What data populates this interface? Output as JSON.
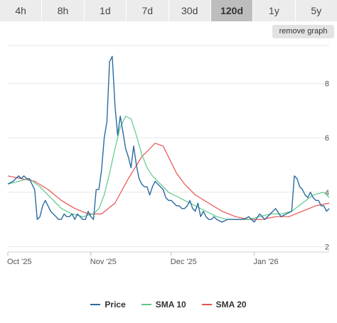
{
  "toolbar": {
    "tabs": [
      {
        "label": "4h"
      },
      {
        "label": "8h"
      },
      {
        "label": "1d"
      },
      {
        "label": "7d"
      },
      {
        "label": "30d"
      },
      {
        "label": "120d"
      },
      {
        "label": "1y"
      },
      {
        "label": "5y"
      }
    ],
    "active_tab": "120d",
    "remove_graph_label": "remove graph"
  },
  "chart_data": {
    "type": "line",
    "x_tick_labels": [
      "Oct '25",
      "Nov '25",
      "Dec '25",
      "Jan '26"
    ],
    "x_ticks": [
      0,
      31,
      61,
      92
    ],
    "y_tick_labels": [
      "2",
      "4",
      "6",
      "8"
    ],
    "ylim": [
      1.8,
      9.4
    ],
    "xlim": [
      0,
      120
    ],
    "grid": true,
    "legend_position": "bottom",
    "series": [
      {
        "name": "Price",
        "color": "#2b6ba0",
        "x": [
          0,
          2,
          4,
          5,
          6,
          7,
          8,
          9,
          10,
          11,
          12,
          13,
          14,
          15,
          16,
          18,
          19,
          20,
          21,
          22,
          23,
          24,
          25,
          26,
          27,
          28,
          29,
          30,
          31,
          32,
          33,
          34,
          35,
          36,
          37,
          38,
          39,
          40,
          41,
          42,
          43,
          44,
          45,
          46,
          47,
          48,
          49,
          50,
          51,
          52,
          53,
          54,
          55,
          56,
          57,
          58,
          59,
          60,
          61,
          62,
          63,
          64,
          65,
          66,
          67,
          68,
          69,
          70,
          71,
          72,
          73,
          74,
          75,
          76,
          77,
          78,
          80,
          82,
          84,
          86,
          88,
          90,
          92,
          94,
          96,
          98,
          100,
          102,
          104,
          106,
          107,
          108,
          109,
          110,
          111,
          112,
          113,
          114,
          115,
          116,
          117,
          118,
          119,
          120
        ],
        "values": [
          4.3,
          4.4,
          4.6,
          4.5,
          4.6,
          4.5,
          4.5,
          4.3,
          4.1,
          3.0,
          3.1,
          3.5,
          3.7,
          3.5,
          3.3,
          3.1,
          3.0,
          3.0,
          3.2,
          3.1,
          3.1,
          3.2,
          3.0,
          3.2,
          3.1,
          3.0,
          3.0,
          3.3,
          3.1,
          3.0,
          4.1,
          4.1,
          4.8,
          6.0,
          6.6,
          8.8,
          9.0,
          7.2,
          6.1,
          6.8,
          6.2,
          5.6,
          5.3,
          4.9,
          5.7,
          5.0,
          4.5,
          4.3,
          4.2,
          4.2,
          3.9,
          4.2,
          4.4,
          4.3,
          4.2,
          4.1,
          3.8,
          3.7,
          3.7,
          3.6,
          3.5,
          3.5,
          3.4,
          3.4,
          3.5,
          3.7,
          3.4,
          3.3,
          3.6,
          3.1,
          3.3,
          3.1,
          3.0,
          3.0,
          3.1,
          3.0,
          2.9,
          3.0,
          3.0,
          3.0,
          3.0,
          3.1,
          2.9,
          3.2,
          3.0,
          3.2,
          3.4,
          3.1,
          3.2,
          3.3,
          4.6,
          4.5,
          4.2,
          4.1,
          3.9,
          3.8,
          4.0,
          3.8,
          3.7,
          3.7,
          3.5,
          3.5,
          3.3,
          3.4
        ]
      },
      {
        "name": "SMA 10",
        "color": "#5cc98b",
        "x": [
          0,
          4,
          8,
          12,
          16,
          20,
          24,
          28,
          32,
          34,
          36,
          38,
          40,
          42,
          44,
          46,
          48,
          50,
          52,
          54,
          56,
          58,
          60,
          62,
          64,
          66,
          68,
          70,
          74,
          78,
          82,
          86,
          90,
          94,
          98,
          102,
          106,
          110,
          114,
          118,
          120
        ],
        "values": [
          4.3,
          4.4,
          4.5,
          4.2,
          3.8,
          3.4,
          3.2,
          3.1,
          3.2,
          3.4,
          3.9,
          4.7,
          5.6,
          6.4,
          6.8,
          6.7,
          6.1,
          5.4,
          4.9,
          4.6,
          4.4,
          4.2,
          4.0,
          3.9,
          3.8,
          3.7,
          3.6,
          3.5,
          3.3,
          3.1,
          3.0,
          3.0,
          3.0,
          3.1,
          3.2,
          3.2,
          3.3,
          3.6,
          3.9,
          4.0,
          3.8
        ]
      },
      {
        "name": "SMA 20",
        "color": "#e8524f",
        "x": [
          0,
          5,
          10,
          15,
          20,
          25,
          30,
          35,
          40,
          45,
          50,
          55,
          58,
          60,
          63,
          66,
          70,
          75,
          80,
          85,
          90,
          95,
          100,
          105,
          110,
          115,
          120
        ],
        "values": [
          4.6,
          4.5,
          4.4,
          4.1,
          3.7,
          3.4,
          3.2,
          3.2,
          3.6,
          4.5,
          5.3,
          5.8,
          5.7,
          5.3,
          4.7,
          4.3,
          3.9,
          3.6,
          3.3,
          3.1,
          3.0,
          3.0,
          3.1,
          3.1,
          3.3,
          3.5,
          3.6
        ]
      }
    ]
  }
}
